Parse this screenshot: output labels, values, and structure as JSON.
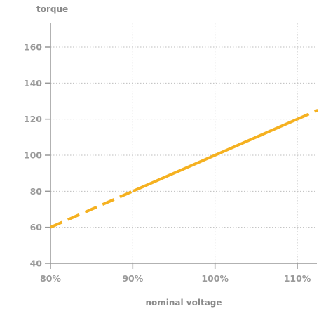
{
  "chart_data": {
    "type": "line",
    "title": "",
    "xlabel": "nominal voltage",
    "ylabel": "torque",
    "x_ticks": [
      0.8,
      0.9,
      1.0,
      1.1
    ],
    "x_tick_labels": [
      "80%",
      "90%",
      "100%",
      "110%"
    ],
    "y_ticks": [
      40,
      60,
      80,
      100,
      120,
      140,
      160
    ],
    "y_tick_labels": [
      "40",
      "60",
      "80",
      "100",
      "120",
      "140",
      "160"
    ],
    "xlim": [
      0.8,
      1.125
    ],
    "ylim": [
      40,
      172
    ],
    "grid": true,
    "colors": {
      "line": "#f5b120",
      "axis": "#999999",
      "grid": "#bdbdbd"
    },
    "series": [
      {
        "values_solid": {
          "x": [
            0.9,
            1.1
          ],
          "y": [
            80,
            120
          ]
        },
        "values_dashed_low": {
          "x": [
            0.8,
            0.9
          ],
          "y": [
            60,
            80
          ]
        },
        "values_dashed_high": {
          "x": [
            1.1,
            1.125
          ],
          "y": [
            120,
            125
          ]
        }
      }
    ]
  }
}
